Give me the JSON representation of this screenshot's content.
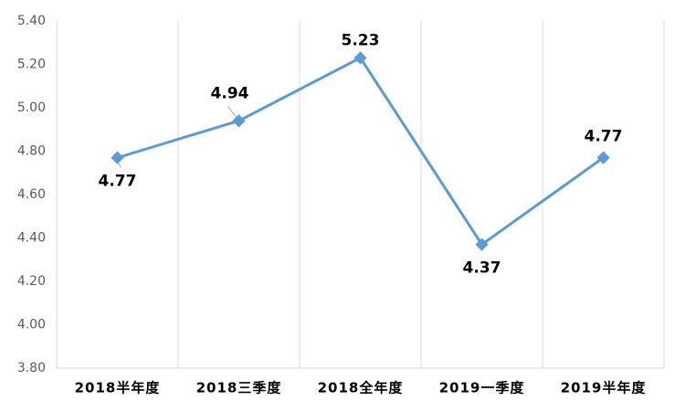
{
  "chart_data": {
    "type": "line",
    "categories": [
      "2018半年度",
      "2018三季度",
      "2018全年度",
      "2019一季度",
      "2019半年度"
    ],
    "series": [
      {
        "color": "#5b9bd5",
        "values": [
          4.77,
          4.94,
          5.23,
          4.37,
          4.77
        ]
      }
    ],
    "ylim": [
      3.8,
      5.4
    ],
    "yticks": [
      {
        "value": 3.8,
        "label": "3.80"
      },
      {
        "value": 4.0,
        "label": "4.00"
      },
      {
        "value": 4.2,
        "label": "4.20"
      },
      {
        "value": 4.4,
        "label": "4.40"
      },
      {
        "value": 4.6,
        "label": "4.60"
      },
      {
        "value": 4.8,
        "label": "4.80"
      },
      {
        "value": 5.0,
        "label": "5.00"
      },
      {
        "value": 5.2,
        "label": "5.20"
      },
      {
        "value": 5.4,
        "label": "5.40"
      }
    ],
    "grid": true
  }
}
